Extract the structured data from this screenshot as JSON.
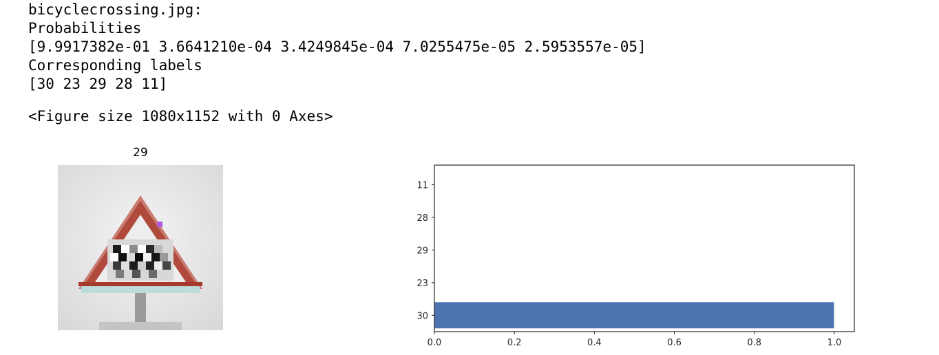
{
  "output": {
    "filename_line": "bicyclecrossing.jpg:",
    "prob_header": "Probabilities",
    "prob_values": "[9.9917382e-01 3.6641210e-04 3.4249845e-04 7.0255475e-05 2.5953557e-05]",
    "labels_header": "Corresponding labels",
    "labels_values": "[30 23 29 28 11]",
    "figure_info": "<Figure size 1080x1152 with 0 Axes>"
  },
  "image_panel": {
    "title": "29"
  },
  "chart_data": {
    "type": "bar",
    "orientation": "horizontal",
    "categories": [
      "30",
      "23",
      "29",
      "28",
      "11"
    ],
    "values": [
      0.99917382,
      0.0003664121,
      0.00034249845,
      7.0255475e-05,
      2.5953557e-05
    ],
    "xlim": [
      0.0,
      1.05
    ],
    "xticks": [
      0.0,
      0.2,
      0.4,
      0.6,
      0.8,
      1.0
    ],
    "xtick_labels": [
      "0.0",
      "0.2",
      "0.4",
      "0.6",
      "0.8",
      "1.0"
    ],
    "grid": false,
    "bar_color": "#4c72b0"
  }
}
